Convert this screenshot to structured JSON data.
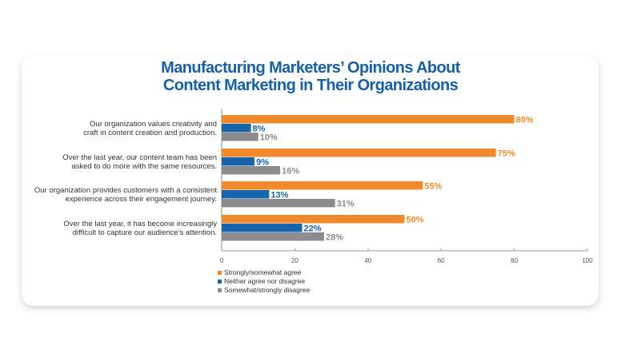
{
  "chart_data": {
    "type": "bar",
    "orientation": "horizontal",
    "title": "Manufacturing Marketers’ Opinions About Content Marketing in Their Organizations",
    "title_lines": [
      "Manufacturing Marketers’ Opinions About",
      "Content Marketing in Their Organizations"
    ],
    "categories": [
      [
        "Our organization values creativity and",
        "craft in content creation and production."
      ],
      [
        "Over the last year, our content team has been",
        "asked to do more with the same resources."
      ],
      [
        "Our organization provides customers with a consistent",
        "experience across their engagement journey."
      ],
      [
        "Over the last year, it has become increasingly",
        "difficult to capture our audience’s attention."
      ]
    ],
    "series": [
      {
        "name": "Strongly/somewhat agree",
        "color": "#f08a2c",
        "values": [
          80,
          75,
          55,
          50
        ]
      },
      {
        "name": "Neither agree nor disagree",
        "color": "#1564ac",
        "values": [
          8,
          9,
          13,
          22
        ]
      },
      {
        "name": "Somewhat/strongly disagree",
        "color": "#8c8c8e",
        "values": [
          10,
          16,
          31,
          28
        ]
      }
    ],
    "value_suffix": "%",
    "xlim": [
      0,
      100
    ],
    "xticks": [
      "0",
      "20",
      "40",
      "60",
      "80",
      "100"
    ],
    "grid": false,
    "legend_position": "bottom-left"
  }
}
